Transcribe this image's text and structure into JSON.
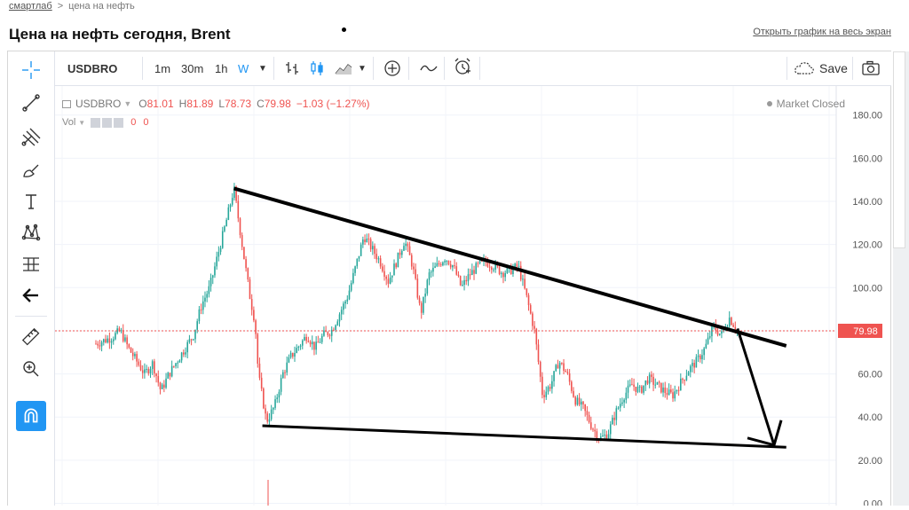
{
  "breadcrumb": {
    "home": "смартлаб",
    "separator": ">",
    "current": "цена на нефть"
  },
  "page_title": "Цена на нефть сегодня, Brent",
  "fullscreen_link": "Открыть график на весь экран",
  "toolbar": {
    "symbol": "USDBRO",
    "intervals": [
      "1m",
      "30m",
      "1h",
      "W"
    ],
    "active_interval": "W",
    "save_label": "Save"
  },
  "legend": {
    "symbol": "USDBRO",
    "open_label": "O",
    "open": "81.01",
    "high_label": "H",
    "high": "81.89",
    "low_label": "L",
    "low": "78.73",
    "close_label": "C",
    "close": "79.98",
    "change": "−1.03 (−1.27%)",
    "market_status": "Market Closed",
    "vol_label": "Vol",
    "vol_values": [
      "0",
      "0"
    ]
  },
  "colors": {
    "up": "#26a69a",
    "down": "#ef5350",
    "accent": "#2196f3",
    "price_line": "#ef5350"
  },
  "icons": [
    "crosshair-icon",
    "trend-line-icon",
    "pitchfork-icon",
    "brush-icon",
    "text-icon",
    "pattern-icon",
    "measure-icon",
    "back-arrow-icon",
    "ruler-icon",
    "zoom-icon",
    "magnet-icon"
  ],
  "chart_data": {
    "type": "candlestick",
    "symbol": "USDBRO",
    "interval": "W",
    "y_ticks": [
      "180.00",
      "160.00",
      "140.00",
      "120.00",
      "100.00",
      "80.00",
      "60.00",
      "40.00",
      "20.00",
      "0.00"
    ],
    "ylim": [
      0,
      190
    ],
    "last_price": 79.98,
    "last_price_label": "79.98",
    "grid": true,
    "path": [
      [
        0,
        74
      ],
      [
        2,
        77
      ],
      [
        3,
        80
      ],
      [
        4,
        72
      ],
      [
        5,
        66
      ],
      [
        6,
        60
      ],
      [
        7,
        65
      ],
      [
        8,
        52
      ],
      [
        9,
        60
      ],
      [
        10,
        66
      ],
      [
        11,
        72
      ],
      [
        12,
        78
      ],
      [
        13,
        92
      ],
      [
        14,
        100
      ],
      [
        15,
        115
      ],
      [
        16,
        130
      ],
      [
        17,
        146
      ],
      [
        18,
        120
      ],
      [
        19,
        95
      ],
      [
        19.6,
        84
      ],
      [
        20,
        60
      ],
      [
        21,
        38
      ],
      [
        22,
        45
      ],
      [
        23,
        60
      ],
      [
        24,
        68
      ],
      [
        25,
        73
      ],
      [
        26,
        78
      ],
      [
        27,
        72
      ],
      [
        28,
        78
      ],
      [
        29,
        80
      ],
      [
        30,
        88
      ],
      [
        31,
        96
      ],
      [
        32,
        110
      ],
      [
        33,
        124
      ],
      [
        34,
        118
      ],
      [
        35,
        112
      ],
      [
        36,
        103
      ],
      [
        37,
        112
      ],
      [
        38,
        122
      ],
      [
        39,
        110
      ],
      [
        40,
        88
      ],
      [
        41,
        106
      ],
      [
        42,
        110
      ],
      [
        43,
        114
      ],
      [
        44,
        110
      ],
      [
        45,
        100
      ],
      [
        46,
        106
      ],
      [
        47,
        110
      ],
      [
        48,
        112
      ],
      [
        49,
        110
      ],
      [
        50,
        107
      ],
      [
        51,
        108
      ],
      [
        52,
        110
      ],
      [
        53,
        96
      ],
      [
        54,
        80
      ],
      [
        55,
        50
      ],
      [
        56,
        55
      ],
      [
        57,
        66
      ],
      [
        58,
        60
      ],
      [
        59,
        48
      ],
      [
        60,
        44
      ],
      [
        61,
        36
      ],
      [
        62,
        30
      ],
      [
        63,
        32
      ],
      [
        64,
        42
      ],
      [
        65,
        50
      ],
      [
        66,
        55
      ],
      [
        67,
        52
      ],
      [
        68,
        58
      ],
      [
        69,
        55
      ],
      [
        70,
        52
      ],
      [
        71,
        50
      ],
      [
        72,
        56
      ],
      [
        73,
        62
      ],
      [
        74,
        66
      ],
      [
        75,
        72
      ],
      [
        76,
        82
      ],
      [
        77,
        78
      ],
      [
        78,
        86
      ],
      [
        79,
        80
      ]
    ],
    "trendlines": [
      {
        "x1": 17,
        "y1": 146,
        "x2": 85,
        "y2": 73
      },
      {
        "x1": 20.5,
        "y1": 36,
        "x2": 85,
        "y2": 26
      }
    ],
    "arrow": {
      "x1": 79,
      "y1": 81,
      "x2": 83.5,
      "y2": 27
    }
  }
}
